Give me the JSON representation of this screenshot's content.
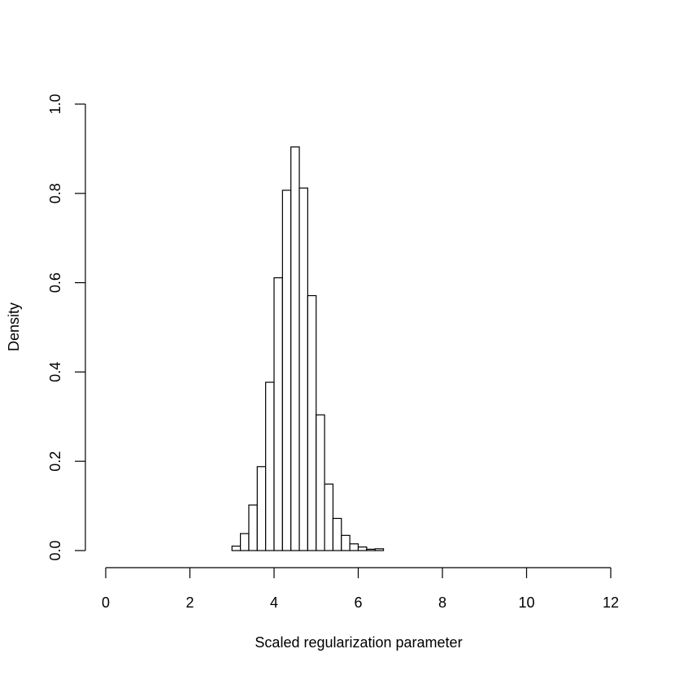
{
  "chart_data": {
    "type": "bar",
    "title": "",
    "xlabel": "Scaled regularization parameter",
    "ylabel": "Density",
    "xlim": [
      0,
      12
    ],
    "ylim": [
      0,
      1.0
    ],
    "x_ticks": [
      "0",
      "2",
      "4",
      "6",
      "8",
      "10",
      "12"
    ],
    "y_ticks": [
      "0.0",
      "0.2",
      "0.4",
      "0.6",
      "0.8",
      "1.0"
    ],
    "bin_width": 0.2,
    "bin_edges_start": 0,
    "values": [
      0,
      0,
      0,
      0,
      0,
      0,
      0,
      0,
      0,
      0,
      0,
      0,
      0,
      0,
      0,
      0.01,
      0.038,
      0.102,
      0.188,
      0.377,
      0.611,
      0.807,
      0.904,
      0.812,
      0.571,
      0.304,
      0.149,
      0.072,
      0.034,
      0.015,
      0.008,
      0.003,
      0.004,
      0,
      0,
      0,
      0,
      0,
      0,
      0,
      0,
      0,
      0,
      0,
      0,
      0,
      0,
      0,
      0,
      0,
      0,
      0,
      0,
      0,
      0,
      0,
      0,
      0,
      0,
      0,
      0,
      0
    ],
    "grid": false,
    "colors": {
      "fill": "#ffffff",
      "stroke": "#000000"
    }
  }
}
